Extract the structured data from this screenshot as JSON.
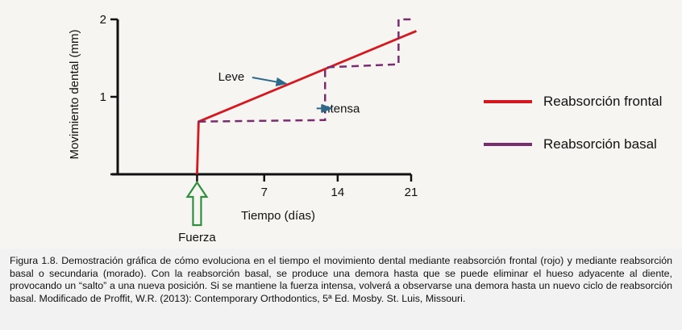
{
  "chart_data": {
    "type": "line",
    "xlabel": "Tiempo (días)",
    "ylabel": "Movimiento dental (mm)",
    "xlim": [
      -7.5,
      21
    ],
    "ylim": [
      0,
      2
    ],
    "x_ticks": [
      7,
      14,
      21
    ],
    "y_ticks": [
      1,
      2
    ],
    "grid": false,
    "legend_position": "right",
    "series": [
      {
        "name": "Reabsorción frontal",
        "color": "#d4181f",
        "style": "solid",
        "points": [
          [
            0.6,
            0
          ],
          [
            0.75,
            0.68
          ],
          [
            21.5,
            1.85
          ]
        ]
      },
      {
        "name": "Reabsorción basal",
        "color": "#7a2d6e",
        "style": "dashed",
        "points": [
          [
            0.75,
            0.68
          ],
          [
            12.8,
            0.7
          ],
          [
            12.8,
            1.38
          ],
          [
            19.8,
            1.42
          ],
          [
            19.8,
            2.0
          ],
          [
            21.4,
            2.0
          ]
        ]
      }
    ],
    "annotations": [
      {
        "text": "Leve",
        "x": 5.4,
        "y": 1.26,
        "arrow_to": [
          9.1,
          1.17
        ]
      },
      {
        "text": "Intensa",
        "x": 15.6,
        "y": 0.85,
        "arrow_to": [
          13.2,
          0.85
        ]
      },
      {
        "text": "Fuerza",
        "x": 0.6,
        "y": -0.82,
        "arrow_to": [
          0.6,
          -0.14
        ]
      }
    ],
    "colors": {
      "axis": "#111111",
      "annotation_arrow": "#2c6a8c",
      "force_arrow": "#2f8f3f"
    }
  },
  "caption": "Figura 1.8. Demostración gráfica de cómo evoluciona en el tiempo el movimiento dental mediante reabsorción frontal (rojo) y mediante reabsorción basal o secundaria (morado). Con la reabsorción basal, se produce una demora hasta que se puede eliminar el hueso adyacente al diente, provocando un “salto” a una nueva posición. Si se mantiene la fuerza intensa, volverá a observarse una demora hasta un nuevo ciclo de reabsorción basal. Modificado de Proffit, W.R. (2013): Contemporary Orthodontics, 5ª Ed. Mosby. St. Luis, Missouri."
}
